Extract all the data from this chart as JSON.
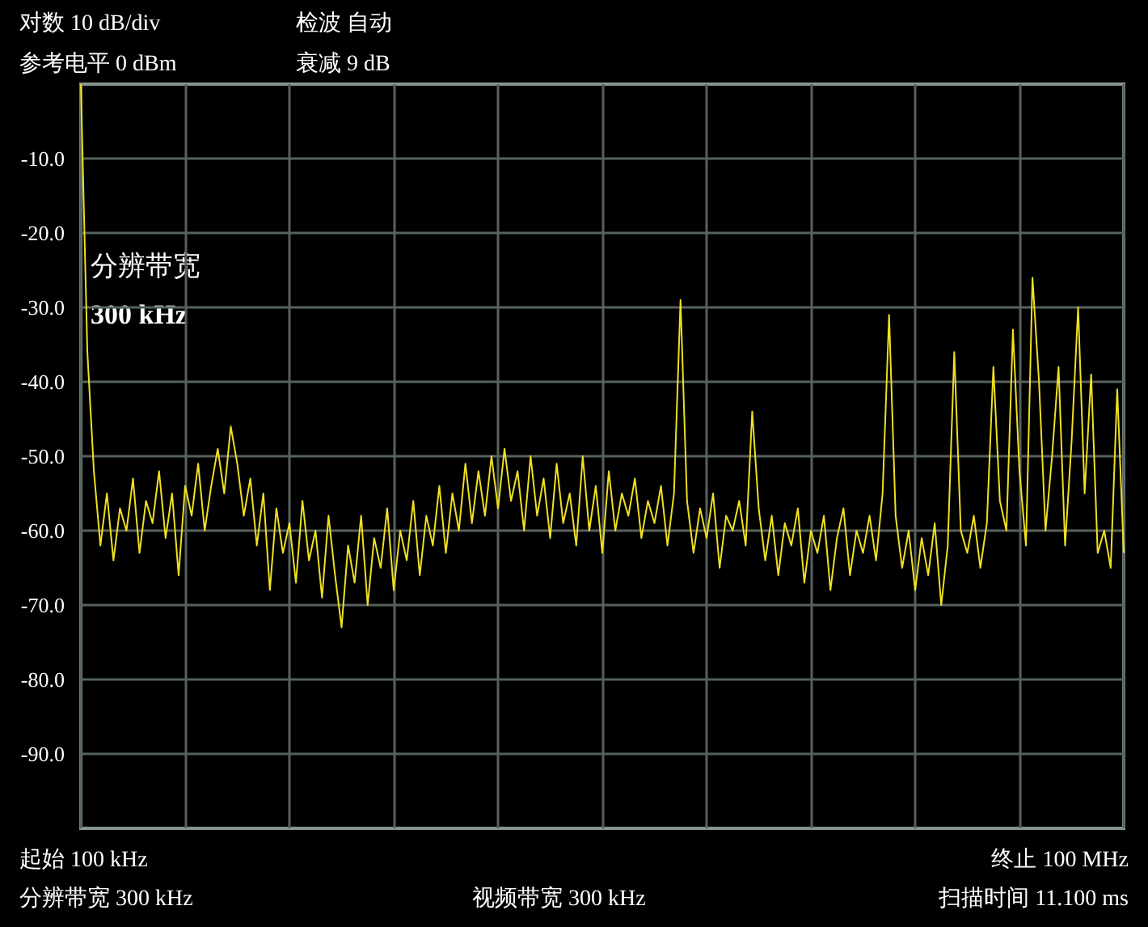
{
  "chart_data": {
    "type": "line",
    "categories": [
      null,
      null,
      null,
      null,
      null,
      null,
      null,
      null,
      null,
      null,
      null,
      null,
      null,
      null,
      null,
      null,
      null,
      null,
      null,
      null,
      null,
      null,
      null,
      null,
      null,
      null,
      null,
      null,
      null,
      null,
      null,
      null,
      null,
      null,
      null,
      null,
      null,
      null,
      null,
      null,
      null,
      null,
      null,
      null,
      null,
      null,
      null,
      null,
      null,
      null,
      null,
      null,
      null,
      null,
      null,
      null,
      null,
      null,
      null,
      null,
      null,
      null,
      null,
      null,
      null,
      null,
      null,
      null,
      null,
      null,
      null,
      null,
      null,
      null,
      null,
      null,
      null,
      null,
      null,
      null,
      null,
      null,
      null,
      null,
      null,
      null,
      null,
      null,
      null,
      null,
      null,
      null,
      null,
      null,
      null,
      null,
      null,
      null,
      null,
      null,
      null,
      null,
      null,
      null,
      null,
      null,
      null,
      null,
      null,
      null,
      null,
      null,
      null,
      null,
      null,
      null,
      null,
      null,
      null,
      null,
      null,
      null,
      null,
      null,
      null,
      null,
      null,
      null,
      null,
      null,
      null,
      null,
      null,
      null,
      null,
      null,
      null,
      null,
      null,
      null,
      null,
      null,
      null,
      null,
      null,
      null,
      null,
      null,
      null,
      null,
      null,
      null,
      null,
      null,
      null,
      null,
      null,
      null,
      null,
      null,
      null
    ],
    "series": [
      {
        "color": "#f0e020",
        "values": [
          0,
          -36,
          -52,
          -62,
          -55,
          -64,
          -57,
          -60,
          -53,
          -63,
          -56,
          -59,
          -52,
          -61,
          -55,
          -66,
          -54,
          -58,
          -51,
          -60,
          -54,
          -49,
          -55,
          -46,
          -51,
          -58,
          -53,
          -62,
          -55,
          -68,
          -57,
          -63,
          -59,
          -67,
          -56,
          -64,
          -60,
          -69,
          -58,
          -66,
          -73,
          -62,
          -67,
          -58,
          -70,
          -61,
          -65,
          -57,
          -68,
          -60,
          -64,
          -56,
          -66,
          -58,
          -62,
          -54,
          -63,
          -55,
          -60,
          -51,
          -59,
          -52,
          -58,
          -50,
          -57,
          -49,
          -56,
          -52,
          -60,
          -50,
          -58,
          -53,
          -61,
          -51,
          -59,
          -55,
          -62,
          -50,
          -60,
          -54,
          -63,
          -52,
          -60,
          -55,
          -58,
          -53,
          -61,
          -56,
          -59,
          -54,
          -62,
          -55,
          -29,
          -56,
          -63,
          -57,
          -61,
          -55,
          -65,
          -58,
          -60,
          -56,
          -62,
          -44,
          -57,
          -64,
          -58,
          -66,
          -59,
          -62,
          -57,
          -67,
          -60,
          -63,
          -58,
          -68,
          -61,
          -57,
          -66,
          -60,
          -63,
          -58,
          -64,
          -55,
          -31,
          -58,
          -65,
          -60,
          -68,
          -61,
          -66,
          -59,
          -70,
          -62,
          -36,
          -60,
          -63,
          -58,
          -65,
          -59,
          -38,
          -56,
          -60,
          -33,
          -52,
          -62,
          -26,
          -40,
          -60,
          -50,
          -38,
          -62,
          -48,
          -30,
          -55,
          -39,
          -63,
          -60,
          -65,
          -41,
          -63
        ]
      }
    ],
    "ylim": [
      -100,
      0
    ],
    "yticks": [
      {
        "value": -10,
        "label": "-10.0"
      },
      {
        "value": -20,
        "label": "-20.0"
      },
      {
        "value": -30,
        "label": "-30.0"
      },
      {
        "value": -40,
        "label": "-40.0"
      },
      {
        "value": -50,
        "label": "-50.0"
      },
      {
        "value": -60,
        "label": "-60.0"
      },
      {
        "value": -70,
        "label": "-70.0"
      },
      {
        "value": -80,
        "label": "-80.0"
      },
      {
        "value": -90,
        "label": "-90.0"
      }
    ],
    "grid": true,
    "line_style": "solid",
    "annotations": [
      "对数 10 dB/div",
      "检波 自动",
      "参考电平 0 dBm",
      "衰减 9 dB",
      "分辨带宽",
      "300 kHz",
      "起始 100 kHz",
      "终止 100 MHz",
      "分辨带宽 300 kHz",
      "视频带宽 300 kHz",
      "扫描时间 11.100 ms"
    ]
  }
}
